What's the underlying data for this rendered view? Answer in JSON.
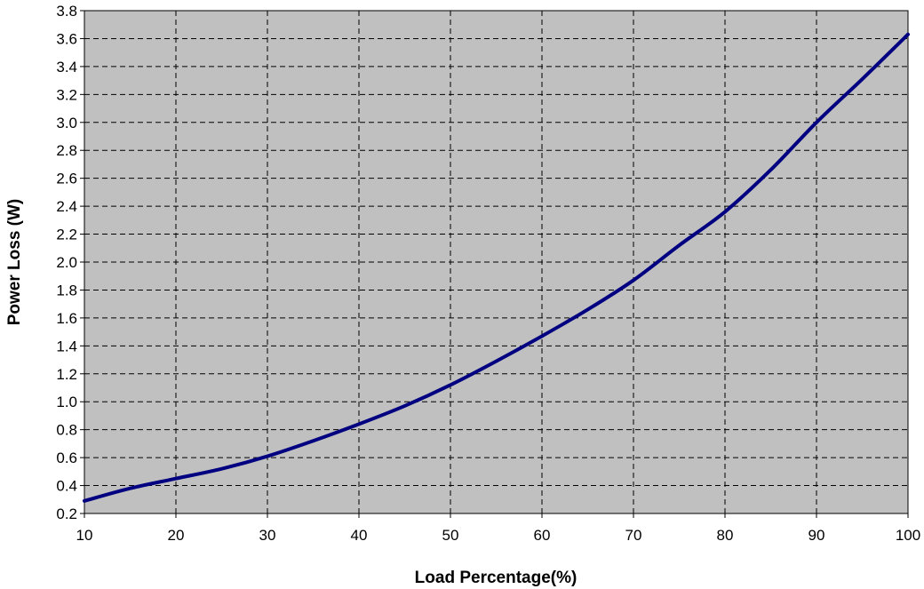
{
  "chart_data": {
    "type": "line",
    "title": "",
    "xlabel": "Load Percentage(%)",
    "ylabel": "Power Loss (W)",
    "xlim": [
      10,
      100
    ],
    "ylim": [
      0.2,
      3.8
    ],
    "x_ticks": [
      "10",
      "20",
      "30",
      "40",
      "50",
      "60",
      "70",
      "80",
      "90",
      "100"
    ],
    "y_ticks": [
      "0.2",
      "0.4",
      "0.6",
      "0.8",
      "1.0",
      "1.2",
      "1.4",
      "1.6",
      "1.8",
      "2.0",
      "2.2",
      "2.4",
      "2.6",
      "2.8",
      "3.0",
      "3.2",
      "3.4",
      "3.6",
      "3.8"
    ],
    "grid": true,
    "legend": "none",
    "plot_background": "#c0c0c0",
    "series": [
      {
        "color": "#000080",
        "x": [
          10,
          15,
          20,
          25,
          30,
          35,
          40,
          45,
          50,
          55,
          60,
          65,
          70,
          75,
          80,
          85,
          90,
          95,
          100
        ],
        "y": [
          0.29,
          0.38,
          0.45,
          0.52,
          0.61,
          0.72,
          0.84,
          0.97,
          1.12,
          1.29,
          1.47,
          1.66,
          1.87,
          2.12,
          2.36,
          2.66,
          3.0,
          3.31,
          3.63
        ]
      }
    ]
  }
}
